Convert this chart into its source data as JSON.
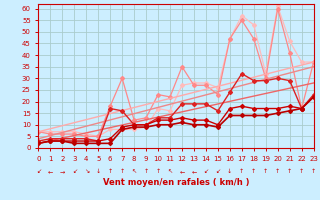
{
  "title": "",
  "xlabel": "Vent moyen/en rafales ( km/h )",
  "bg_color": "#cceeff",
  "grid_color": "#aacccc",
  "axis_color": "#cc0000",
  "xlabel_color": "#cc0000",
  "tick_color": "#cc0000",
  "xlim": [
    0,
    23
  ],
  "ylim": [
    0,
    62
  ],
  "yticks": [
    0,
    5,
    10,
    15,
    20,
    25,
    30,
    35,
    40,
    45,
    50,
    55,
    60
  ],
  "xticks": [
    0,
    1,
    2,
    3,
    4,
    5,
    6,
    7,
    8,
    9,
    10,
    11,
    12,
    13,
    14,
    15,
    16,
    17,
    18,
    19,
    20,
    21,
    22,
    23
  ],
  "lines": [
    {
      "comment": "darkest red zigzag line - low values",
      "x": [
        0,
        1,
        2,
        3,
        4,
        5,
        6,
        7,
        8,
        9,
        10,
        11,
        12,
        13,
        14,
        15,
        16,
        17,
        18,
        19,
        20,
        21,
        22,
        23
      ],
      "y": [
        2,
        3,
        3,
        2,
        2,
        2,
        2,
        8,
        9,
        9,
        10,
        10,
        11,
        10,
        10,
        9,
        14,
        14,
        14,
        14,
        15,
        16,
        17,
        22
      ],
      "color": "#bb0000",
      "lw": 1.2,
      "marker": "D",
      "ms": 2.0,
      "linestyle": "-"
    },
    {
      "comment": "dark red zigzag",
      "x": [
        0,
        1,
        2,
        3,
        4,
        5,
        6,
        7,
        8,
        9,
        10,
        11,
        12,
        13,
        14,
        15,
        16,
        17,
        18,
        19,
        20,
        21,
        22,
        23
      ],
      "y": [
        2,
        3,
        3,
        3,
        3,
        3,
        4,
        9,
        10,
        10,
        12,
        12,
        13,
        12,
        12,
        10,
        17,
        18,
        17,
        17,
        17,
        18,
        17,
        22
      ],
      "color": "#cc0000",
      "lw": 1.0,
      "marker": "D",
      "ms": 2.0,
      "linestyle": "-"
    },
    {
      "comment": "medium red with spike at x=6,7",
      "x": [
        0,
        1,
        2,
        3,
        4,
        5,
        6,
        7,
        8,
        9,
        10,
        11,
        12,
        13,
        14,
        15,
        16,
        17,
        18,
        19,
        20,
        21,
        22,
        23
      ],
      "y": [
        3,
        4,
        4,
        4,
        4,
        3,
        17,
        16,
        10,
        10,
        13,
        13,
        19,
        19,
        19,
        16,
        24,
        32,
        29,
        29,
        30,
        29,
        17,
        23
      ],
      "color": "#dd2222",
      "lw": 1.0,
      "marker": "D",
      "ms": 2.0,
      "linestyle": "-"
    },
    {
      "comment": "lighter red trend line 1 (nearly straight)",
      "x": [
        0,
        23
      ],
      "y": [
        2,
        28
      ],
      "color": "#ee6666",
      "lw": 1.0,
      "marker": "None",
      "ms": 0,
      "linestyle": "-"
    },
    {
      "comment": "lighter red trend line 2",
      "x": [
        0,
        23
      ],
      "y": [
        4,
        35
      ],
      "color": "#ee8888",
      "lw": 1.0,
      "marker": "None",
      "ms": 0,
      "linestyle": "-"
    },
    {
      "comment": "lightest pink trend line (highest slope)",
      "x": [
        0,
        23
      ],
      "y": [
        7,
        37
      ],
      "color": "#ffaaaa",
      "lw": 1.0,
      "marker": "None",
      "ms": 0,
      "linestyle": "-"
    },
    {
      "comment": "medium pink zigzag with spikes",
      "x": [
        0,
        1,
        2,
        3,
        4,
        5,
        6,
        7,
        8,
        9,
        10,
        11,
        12,
        13,
        14,
        15,
        16,
        17,
        18,
        19,
        20,
        21,
        22,
        23
      ],
      "y": [
        7,
        6,
        6,
        6,
        5,
        5,
        18,
        30,
        12,
        13,
        23,
        22,
        35,
        27,
        27,
        23,
        47,
        55,
        47,
        30,
        60,
        41,
        17,
        37
      ],
      "color": "#ff8888",
      "lw": 0.9,
      "marker": "D",
      "ms": 2.0,
      "linestyle": "-"
    },
    {
      "comment": "light pink zigzag higher spikes",
      "x": [
        0,
        1,
        2,
        3,
        4,
        5,
        6,
        7,
        8,
        9,
        10,
        11,
        12,
        13,
        14,
        15,
        16,
        17,
        18,
        19,
        20,
        21,
        22,
        23
      ],
      "y": [
        7,
        7,
        7,
        7,
        6,
        5,
        8,
        8,
        8,
        9,
        17,
        16,
        27,
        28,
        28,
        26,
        47,
        57,
        53,
        32,
        61,
        46,
        37,
        37
      ],
      "color": "#ffbbbb",
      "lw": 0.9,
      "marker": "D",
      "ms": 2.0,
      "linestyle": "-"
    }
  ],
  "arrow_symbols": [
    "↙",
    "←",
    "→",
    "↙",
    "↘",
    "↓",
    "↑",
    "↑",
    "↖",
    "↑",
    "↑",
    "↖",
    "←",
    "←",
    "↙",
    "↙",
    "↓",
    "↑",
    "↑",
    "↑",
    "↑",
    "↑",
    "↑",
    "↑"
  ]
}
